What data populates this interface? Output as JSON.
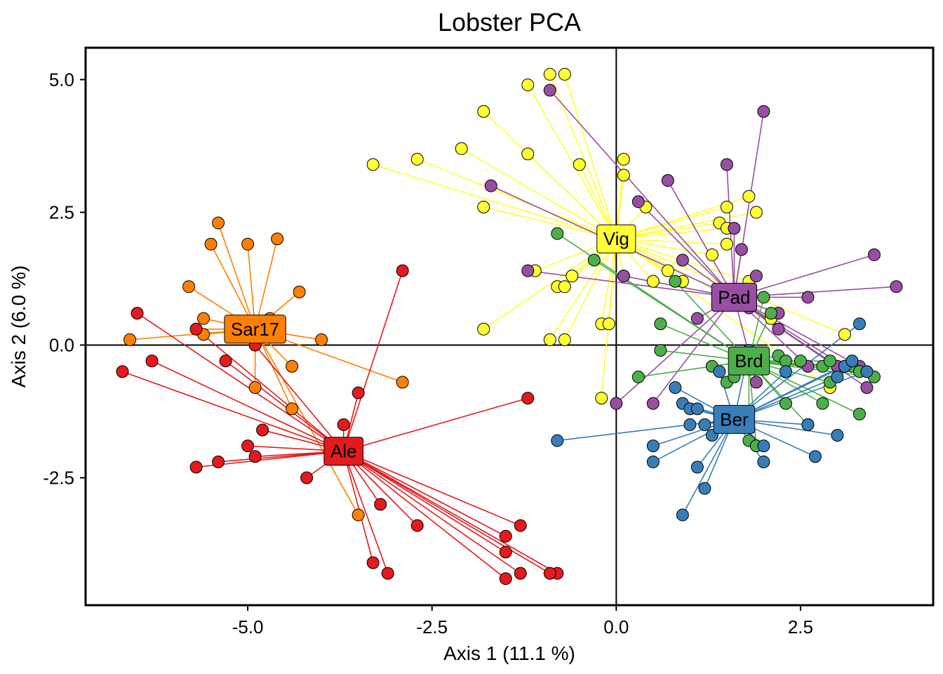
{
  "chart_data": {
    "type": "scatter",
    "title": "Lobster PCA",
    "xlabel": "Axis 1 (11.1 %)",
    "ylabel": "Axis 2 (6.0 %)",
    "xlim": [
      -7.2,
      4.3
    ],
    "ylim": [
      -4.9,
      5.6
    ],
    "xticks": [
      -5.0,
      -2.5,
      0.0,
      2.5
    ],
    "xtick_labels": [
      "-5.0",
      "-2.5",
      "0.0",
      "2.5"
    ],
    "yticks": [
      -2.5,
      0.0,
      2.5,
      5.0
    ],
    "ytick_labels": [
      "-2.5",
      "0.0",
      "2.5",
      "5.0"
    ],
    "reference_lines": {
      "x": 0,
      "y": 0
    },
    "grid": false,
    "legend": "none",
    "series": [
      {
        "name": "Sar17",
        "color": "#FF7F00",
        "centroid": [
          -4.9,
          0.3
        ],
        "points": [
          [
            -5.4,
            2.3
          ],
          [
            -5.5,
            1.9
          ],
          [
            -5.0,
            1.9
          ],
          [
            -4.6,
            2.0
          ],
          [
            -5.8,
            1.1
          ],
          [
            -5.6,
            0.5
          ],
          [
            -5.7,
            0.3
          ],
          [
            -5.6,
            0.2
          ],
          [
            -6.6,
            0.1
          ],
          [
            -4.7,
            0.5
          ],
          [
            -4.3,
            1.0
          ],
          [
            -4.0,
            0.1
          ],
          [
            -4.4,
            -0.4
          ],
          [
            -4.9,
            -0.8
          ],
          [
            -4.4,
            -1.2
          ],
          [
            -2.9,
            -0.7
          ],
          [
            -3.5,
            -3.2
          ]
        ]
      },
      {
        "name": "Ale",
        "color": "#E41A1C",
        "centroid": [
          -3.7,
          -2.0
        ],
        "points": [
          [
            -6.5,
            0.6
          ],
          [
            -5.7,
            0.3
          ],
          [
            -6.7,
            -0.5
          ],
          [
            -6.3,
            -0.3
          ],
          [
            -5.3,
            -0.3
          ],
          [
            -4.9,
            0.0
          ],
          [
            -2.9,
            1.4
          ],
          [
            -3.5,
            -0.9
          ],
          [
            -3.7,
            -1.5
          ],
          [
            -4.8,
            -1.6
          ],
          [
            -5.0,
            -1.9
          ],
          [
            -4.9,
            -2.1
          ],
          [
            -5.4,
            -2.2
          ],
          [
            -5.7,
            -2.3
          ],
          [
            -4.2,
            -2.5
          ],
          [
            -1.2,
            -1.0
          ],
          [
            -3.2,
            -3.0
          ],
          [
            -2.7,
            -3.4
          ],
          [
            -3.3,
            -4.1
          ],
          [
            -3.1,
            -4.3
          ],
          [
            -1.3,
            -3.4
          ],
          [
            -1.5,
            -3.6
          ],
          [
            -1.5,
            -3.9
          ],
          [
            -1.3,
            -4.3
          ],
          [
            -1.5,
            -4.4
          ],
          [
            -0.8,
            -4.3
          ],
          [
            -0.9,
            -4.3
          ]
        ]
      },
      {
        "name": "Vig",
        "color": "#FFFF33",
        "centroid": [
          0.0,
          2.0
        ],
        "points": [
          [
            -0.9,
            5.1
          ],
          [
            -0.7,
            5.1
          ],
          [
            -1.2,
            4.9
          ],
          [
            -1.8,
            4.4
          ],
          [
            -2.1,
            3.7
          ],
          [
            -2.7,
            3.5
          ],
          [
            -3.3,
            3.4
          ],
          [
            -1.2,
            3.6
          ],
          [
            -0.5,
            3.4
          ],
          [
            -1.8,
            2.6
          ],
          [
            0.1,
            3.5
          ],
          [
            0.1,
            3.2
          ],
          [
            0.4,
            2.6
          ],
          [
            -1.1,
            1.4
          ],
          [
            -0.8,
            1.1
          ],
          [
            -0.7,
            1.1
          ],
          [
            -0.6,
            1.3
          ],
          [
            -0.9,
            0.1
          ],
          [
            -0.7,
            0.1
          ],
          [
            -0.2,
            0.4
          ],
          [
            -0.1,
            0.4
          ],
          [
            -1.8,
            0.3
          ],
          [
            0.1,
            1.3
          ],
          [
            0.5,
            1.2
          ],
          [
            0.7,
            1.4
          ],
          [
            0.9,
            1.2
          ],
          [
            -0.2,
            -1.0
          ],
          [
            1.3,
            1.7
          ],
          [
            1.4,
            2.3
          ],
          [
            1.5,
            2.2
          ],
          [
            1.5,
            1.9
          ],
          [
            1.5,
            2.6
          ],
          [
            1.8,
            2.8
          ],
          [
            1.9,
            2.5
          ],
          [
            2.1,
            0.5
          ],
          [
            3.1,
            0.2
          ],
          [
            2.9,
            -0.8
          ],
          [
            1.8,
            1.2
          ]
        ]
      },
      {
        "name": "Pad",
        "color": "#984EA3",
        "centroid": [
          1.6,
          0.9
        ],
        "points": [
          [
            -0.9,
            4.8
          ],
          [
            2.0,
            4.4
          ],
          [
            1.5,
            3.4
          ],
          [
            0.7,
            3.1
          ],
          [
            -1.7,
            3.0
          ],
          [
            0.3,
            2.7
          ],
          [
            1.6,
            2.2
          ],
          [
            1.7,
            1.8
          ],
          [
            -1.2,
            1.4
          ],
          [
            0.1,
            1.3
          ],
          [
            0.9,
            1.6
          ],
          [
            1.9,
            1.3
          ],
          [
            2.6,
            0.9
          ],
          [
            3.5,
            1.7
          ],
          [
            3.8,
            1.1
          ],
          [
            1.1,
            0.5
          ],
          [
            1.8,
            0.7
          ],
          [
            2.2,
            0.6
          ],
          [
            2.2,
            0.3
          ],
          [
            2.6,
            -0.4
          ],
          [
            3.0,
            -0.4
          ],
          [
            3.1,
            -0.4
          ],
          [
            3.3,
            -0.4
          ],
          [
            3.4,
            -0.8
          ],
          [
            -0.0,
            -1.1
          ],
          [
            0.5,
            -1.1
          ],
          [
            1.9,
            -0.7
          ]
        ]
      },
      {
        "name": "Brd",
        "color": "#4DAF4A",
        "centroid": [
          1.8,
          -0.3
        ],
        "points": [
          [
            -0.8,
            2.1
          ],
          [
            -0.3,
            1.6
          ],
          [
            0.8,
            1.2
          ],
          [
            0.6,
            0.4
          ],
          [
            0.6,
            -0.1
          ],
          [
            0.3,
            -0.6
          ],
          [
            1.3,
            -0.4
          ],
          [
            1.5,
            -0.7
          ],
          [
            1.6,
            -0.6
          ],
          [
            2.0,
            0.9
          ],
          [
            2.1,
            0.6
          ],
          [
            2.2,
            -0.2
          ],
          [
            2.3,
            -0.3
          ],
          [
            2.5,
            -0.3
          ],
          [
            2.8,
            -0.4
          ],
          [
            2.9,
            -0.3
          ],
          [
            3.1,
            -0.4
          ],
          [
            3.2,
            -0.4
          ],
          [
            3.3,
            -0.5
          ],
          [
            3.5,
            -0.6
          ],
          [
            2.9,
            -0.7
          ],
          [
            2.8,
            -1.1
          ],
          [
            2.3,
            -1.1
          ],
          [
            2.6,
            -1.5
          ],
          [
            3.3,
            -1.3
          ],
          [
            1.8,
            -1.8
          ],
          [
            1.9,
            -1.9
          ]
        ]
      },
      {
        "name": "Ber",
        "color": "#377EB8",
        "centroid": [
          1.6,
          -1.4
        ],
        "points": [
          [
            -0.8,
            -1.8
          ],
          [
            0.5,
            -1.9
          ],
          [
            0.5,
            -2.2
          ],
          [
            0.8,
            -0.8
          ],
          [
            0.9,
            -1.1
          ],
          [
            1.0,
            -1.2
          ],
          [
            1.1,
            -1.2
          ],
          [
            1.2,
            -1.5
          ],
          [
            1.0,
            -1.5
          ],
          [
            1.3,
            -1.7
          ],
          [
            1.1,
            -2.3
          ],
          [
            1.2,
            -2.7
          ],
          [
            0.9,
            -3.2
          ],
          [
            2.0,
            -1.9
          ],
          [
            2.0,
            -2.2
          ],
          [
            2.6,
            -1.5
          ],
          [
            2.7,
            -2.1
          ],
          [
            3.0,
            -1.7
          ],
          [
            1.4,
            -0.5
          ],
          [
            1.8,
            -0.1
          ],
          [
            2.3,
            -0.5
          ],
          [
            3.1,
            -0.4
          ],
          [
            3.3,
            0.4
          ],
          [
            3.4,
            -0.5
          ],
          [
            3.2,
            -0.3
          ],
          [
            3.0,
            -0.6
          ]
        ]
      }
    ]
  }
}
